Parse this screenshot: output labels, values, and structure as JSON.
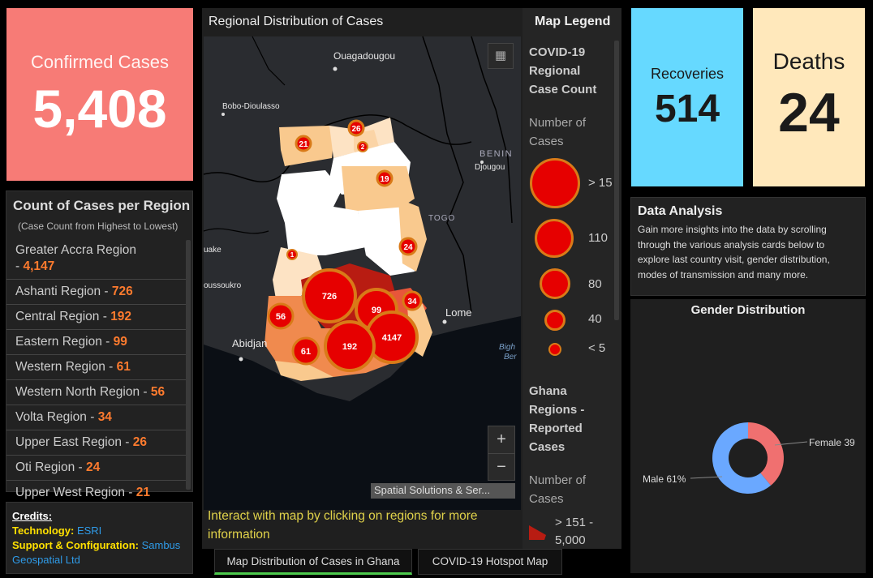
{
  "confirmed": {
    "label": "Confirmed Cases",
    "value": "5,408",
    "color": "#f77b76"
  },
  "regions": {
    "title": "Count of Cases per Region",
    "subtitle": "(Case Count from Highest to Lowest)",
    "items": [
      {
        "name": "Greater Accra Region",
        "sep": " - ",
        "count": "4,147"
      },
      {
        "name": "Ashanti Region",
        "sep": " - ",
        "count": "726"
      },
      {
        "name": "Central Region",
        "sep": " - ",
        "count": "192"
      },
      {
        "name": "Eastern Region",
        "sep": " - ",
        "count": "99"
      },
      {
        "name": "Western Region",
        "sep": " - ",
        "count": "61"
      },
      {
        "name": "Western North Region",
        "sep": " - ",
        "count": "56"
      },
      {
        "name": "Volta Region",
        "sep": " - ",
        "count": "34"
      },
      {
        "name": "Upper East Region",
        "sep": " - ",
        "count": "26"
      },
      {
        "name": "Oti Region",
        "sep": " - ",
        "count": "24"
      },
      {
        "name": "Upper West Region",
        "sep": " - ",
        "count": "21"
      }
    ]
  },
  "credits": {
    "heading": "Credits:",
    "tech_key": "Technology:",
    "tech_val": "ESRI",
    "support_key": "Support & Configuration:",
    "support_val": "Sambus Geospatial Ltd"
  },
  "map": {
    "title": "Regional Distribution of Cases",
    "footer": "Interact with map by clicking on regions for more information",
    "attribution": "Spatial Solutions & Ser...",
    "zoom_in": "+",
    "zoom_out": "−",
    "places": {
      "ouagadougou": "Ouagadougou",
      "bobo": "Bobo-Dioulasso",
      "benin": "BENIN",
      "djougou": "Djougou",
      "togo": "TOGO",
      "yake": "uake",
      "yamoussoukro": "oussoukro",
      "abidjan": "Abidjan",
      "lome": "Lome",
      "bight1": "Bigh",
      "bight2": "Ber"
    },
    "bubble_labels": {
      "b726": "726",
      "b99": "99",
      "b192": "192",
      "b4147": "4147",
      "b56": "56",
      "b61": "61",
      "b34": "34",
      "b24": "24",
      "b19": "19",
      "b26": "26",
      "b21": "21",
      "b2": "2",
      "b1": "1"
    }
  },
  "legend": {
    "title": "Map Legend",
    "layer1": "COVID-19 Regional Case Count",
    "layer1_sub": "Number of Cases",
    "sizes": [
      {
        "label": "> 15"
      },
      {
        "label": "110"
      },
      {
        "label": "80"
      },
      {
        "label": "40"
      },
      {
        "label": "< 5"
      }
    ],
    "layer2": "Ghana Regions - Reported Cases",
    "layer2_sub": "Number of Cases",
    "class1": "> 151 - 5,000",
    "symbol_fill": "#e60000",
    "symbol_outline": "#d97a18"
  },
  "tabs": {
    "tab1": "Map Distribution of Cases in Ghana",
    "tab2": "COVID-19 Hotspot Map",
    "active_color": "#4cc94c"
  },
  "recoveries": {
    "label": "Recoveries",
    "value": "514",
    "color": "#66d9ff"
  },
  "deaths": {
    "label": "Deaths",
    "value": "24",
    "color": "#ffe8bb"
  },
  "analysis": {
    "title": "Data Analysis",
    "text": "Gain more insights into the data by scrolling through the various analysis cards below to explore last country visit, gender distribution, modes of transmission and many more."
  },
  "gender": {
    "title": "Gender Distribution",
    "male_label": "Male 61%",
    "female_label": "Female 39",
    "male_pct": 61,
    "female_pct": 39,
    "male_color": "#6aa8ff",
    "female_color": "#f07070"
  }
}
